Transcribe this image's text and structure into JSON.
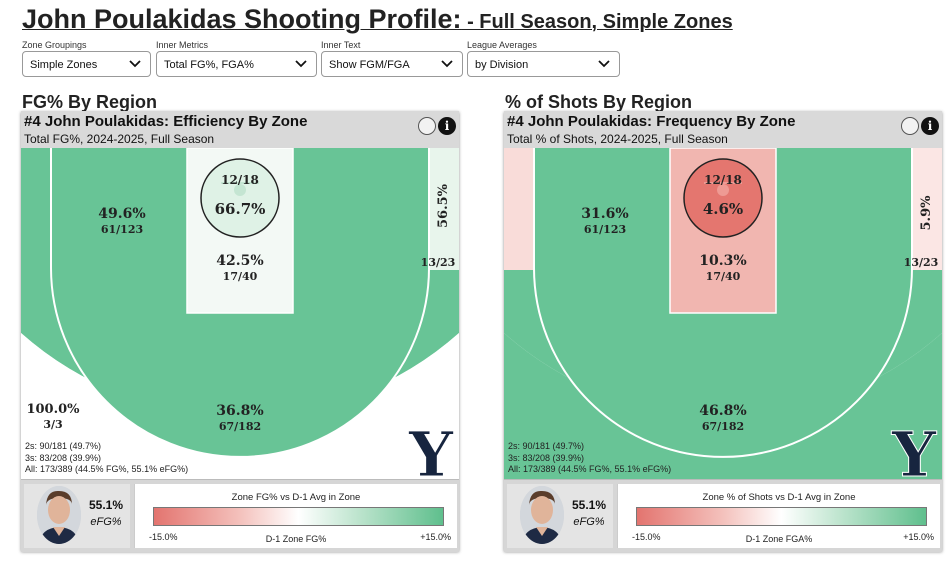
{
  "header": {
    "title_main": "John Poulakidas Shooting Profile:",
    "title_sub": " - Full Season, Simple Zones"
  },
  "controls": [
    {
      "label": "Zone Groupings",
      "value": "Simple Zones"
    },
    {
      "label": "Inner Metrics",
      "value": "Total FG%, FGA%"
    },
    {
      "label": "Inner Text",
      "value": "Show FGM/FGA"
    },
    {
      "label": "League Averages",
      "value": "by Division"
    }
  ],
  "left": {
    "section_title": "FG% By Region",
    "panel_title": "#4 John Poulakidas: Efficiency By Zone",
    "panel_subtitle": "Total FG%, 2024-2025, Full Season",
    "zones": {
      "rim": {
        "frac": "12/18",
        "pct": "66.7%"
      },
      "paint": {
        "pct": "42.5%",
        "frac": "17/40"
      },
      "midrange": {
        "pct": "49.6%",
        "frac": "61/123"
      },
      "corner_right": {
        "pct": "56.5%",
        "frac": "13/23"
      },
      "corner_left": {
        "pct": "100.0%",
        "frac": "3/3"
      },
      "three": {
        "pct": "36.8%",
        "frac": "67/182"
      }
    },
    "stats": [
      "2s: 90/181 (49.7%)",
      "3s: 83/208 (39.9%)",
      "All: 173/389 (44.5% FG%, 55.1% eFG%)"
    ],
    "efg_value": "55.1%",
    "efg_label": "eFG%",
    "legend_title": "Zone FG% vs D-1 Avg in Zone",
    "legend_left": "-15.0%",
    "legend_center": "D-1 Zone FG%",
    "legend_right": "+15.0%",
    "logo": "Y"
  },
  "right": {
    "section_title": "% of Shots By Region",
    "panel_title": "#4 John Poulakidas: Frequency By Zone",
    "panel_subtitle": "Total % of Shots, 2024-2025, Full Season",
    "zones": {
      "rim": {
        "frac": "12/18",
        "pct": "4.6%"
      },
      "paint": {
        "pct": "10.3%",
        "frac": "17/40"
      },
      "midrange": {
        "pct": "31.6%",
        "frac": "61/123"
      },
      "corner_right": {
        "pct": "5.9%",
        "frac": "13/23"
      },
      "three": {
        "pct": "46.8%",
        "frac": "67/182"
      }
    },
    "stats": [
      "2s: 90/181 (49.7%)",
      "3s: 83/208 (39.9%)",
      "All: 173/389 (44.5% FG%, 55.1% eFG%)"
    ],
    "efg_value": "55.1%",
    "efg_label": "eFG%",
    "legend_title": "Zone % of Shots vs D-1 Avg in Zone",
    "legend_left": "-15.0%",
    "legend_center": "D-1 Zone FGA%",
    "legend_right": "+15.0%",
    "logo": "Y"
  },
  "colors": {
    "green": "#68c496",
    "green_light": "#dff2e6",
    "very_light": "#f3f9f5",
    "red_strong": "#e4766f",
    "red_medium": "#f1b6b0",
    "red_light": "#f9dcd9",
    "navy": "#17253f"
  },
  "icons": [
    "chevron-down-icon",
    "info-icon",
    "circle-toggle-icon",
    "player-avatar",
    "byu-logo"
  ]
}
